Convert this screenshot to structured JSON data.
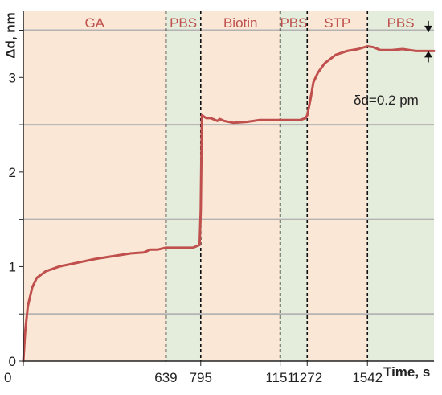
{
  "chart_data": {
    "type": "line",
    "xlabel": "Time, s",
    "ylabel": "Δd, nm",
    "xlim": [
      0,
      1840
    ],
    "ylim": [
      0,
      3.7
    ],
    "y_ticks": [
      "0",
      "1",
      "2",
      "3"
    ],
    "x_tick_labels": [
      {
        "value": 0,
        "label": "0"
      },
      {
        "value": 639,
        "label": "639"
      },
      {
        "value": 795,
        "label": "795"
      },
      {
        "value": 1151,
        "label": "1151"
      },
      {
        "value": 1272,
        "label": "1272"
      },
      {
        "value": 1542,
        "label": "1542"
      }
    ],
    "phases": [
      {
        "label": "GA",
        "start": 0,
        "end": 639,
        "color": "#fbe7d6"
      },
      {
        "label": "PBS",
        "start": 639,
        "end": 795,
        "color": "#e4ecdc"
      },
      {
        "label": "Biotin",
        "start": 795,
        "end": 1151,
        "color": "#fbe7d6"
      },
      {
        "label": "PBS",
        "start": 1151,
        "end": 1272,
        "color": "#e4ecdc"
      },
      {
        "label": "STP",
        "start": 1272,
        "end": 1542,
        "color": "#fbe7d6"
      },
      {
        "label": "PBS",
        "start": 1542,
        "end": 1840,
        "color": "#e4ecdc"
      }
    ],
    "phase_label_color": "#c0504d",
    "gridlines_y": [
      0.5,
      1.5,
      2.5,
      3.5
    ],
    "grid_color": "#b3b3b3",
    "series": [
      {
        "color": "#c0504d",
        "x": [
          0,
          8,
          20,
          40,
          60,
          100,
          160,
          240,
          320,
          400,
          480,
          540,
          570,
          600,
          639,
          700,
          760,
          790,
          795,
          800,
          820,
          840,
          860,
          870,
          880,
          900,
          940,
          1000,
          1060,
          1100,
          1151,
          1200,
          1240,
          1265,
          1272,
          1285,
          1300,
          1320,
          1350,
          1400,
          1450,
          1500,
          1542,
          1570,
          1600,
          1650,
          1700,
          1760,
          1790,
          1840
        ],
        "y": [
          0,
          0.3,
          0.58,
          0.78,
          0.88,
          0.95,
          1.0,
          1.04,
          1.08,
          1.11,
          1.14,
          1.15,
          1.18,
          1.18,
          1.2,
          1.2,
          1.2,
          1.23,
          1.6,
          2.6,
          2.57,
          2.57,
          2.55,
          2.54,
          2.56,
          2.54,
          2.52,
          2.53,
          2.55,
          2.55,
          2.55,
          2.55,
          2.55,
          2.57,
          2.6,
          2.75,
          2.95,
          3.05,
          3.15,
          3.24,
          3.28,
          3.3,
          3.33,
          3.32,
          3.29,
          3.29,
          3.3,
          3.28,
          3.28,
          3.28
        ]
      }
    ],
    "annotation": {
      "text": "δd=0.2 pm",
      "y_top": 3.48,
      "y_bottom": 3.28
    }
  }
}
